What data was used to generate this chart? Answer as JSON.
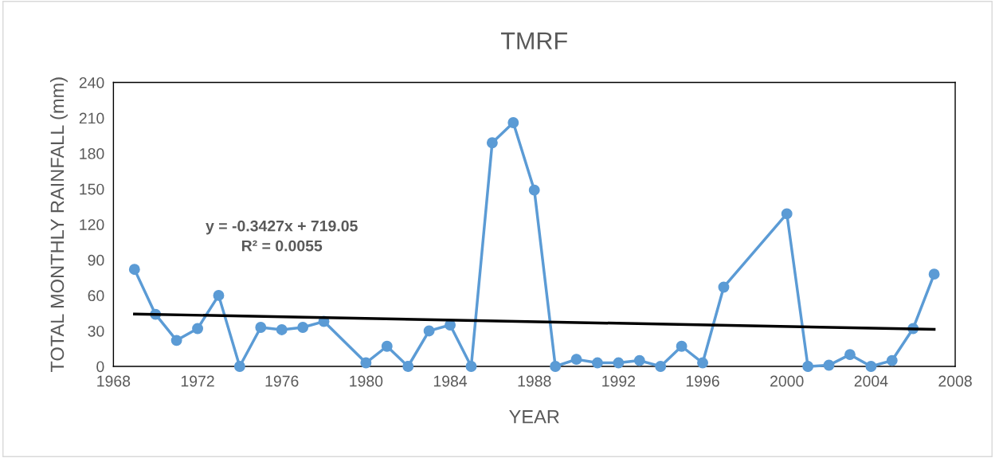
{
  "chart_data": {
    "type": "line",
    "title": "TMRF",
    "xlabel": "YEAR",
    "ylabel": "TOTAL MONTHLY RAINFALL (mm)",
    "series": [
      {
        "color": "#5b9bd5",
        "marker": "circle",
        "x": [
          1969,
          1970,
          1971,
          1972,
          1973,
          1974,
          1975,
          1976,
          1977,
          1978,
          1980,
          1981,
          1982,
          1983,
          1984,
          1985,
          1986,
          1987,
          1988,
          1989,
          1990,
          1991,
          1992,
          1993,
          1994,
          1995,
          1996,
          1997,
          2000,
          2001,
          2002,
          2003,
          2004,
          2005,
          2006,
          2007
        ],
        "values": [
          82,
          44,
          22,
          32,
          60,
          0,
          33,
          31,
          33,
          38,
          3,
          17,
          0,
          30,
          35,
          0,
          189,
          206,
          149,
          0,
          6,
          3,
          3,
          5,
          0,
          17,
          3,
          67,
          129,
          0,
          1,
          10,
          0,
          5,
          32,
          78
        ]
      },
      {
        "color": "#000000",
        "marker": "none",
        "x": [
          1969,
          2007
        ],
        "values": [
          44.3,
          31.3
        ]
      }
    ],
    "annotations": [
      "y = -0.3427x + 719.05",
      "R² = 0.0055"
    ],
    "xlim": [
      1968,
      2008
    ],
    "xticks": [
      1968,
      1972,
      1976,
      1980,
      1984,
      1988,
      1992,
      1996,
      2000,
      2004,
      2008
    ],
    "ylim": [
      0,
      240
    ],
    "yticks": [
      0,
      30,
      60,
      90,
      120,
      150,
      180,
      210,
      240
    ],
    "grid": false,
    "legend": false
  }
}
